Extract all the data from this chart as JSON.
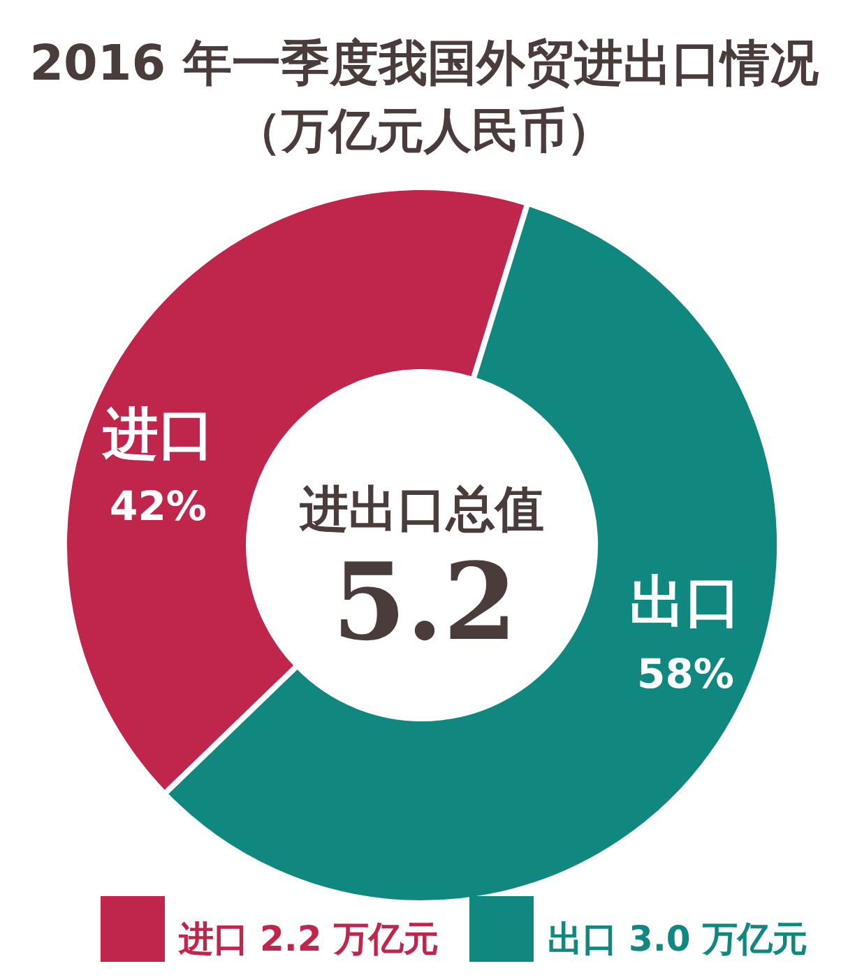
{
  "chart_data": {
    "type": "donut",
    "title": "2016 年一季度我国外贸进出口情况",
    "subtitle": "（万亿元人民币）",
    "categories": [
      "进口",
      "出口"
    ],
    "values": [
      42,
      58
    ],
    "value_labels": [
      "42%",
      "58%"
    ],
    "colors": [
      "#c0254b",
      "#10877f"
    ],
    "legend": "bottom",
    "annotations": [
      "进出口总值",
      "5.2",
      "2.2 万亿元",
      "3.0 万亿元"
    ]
  }
}
